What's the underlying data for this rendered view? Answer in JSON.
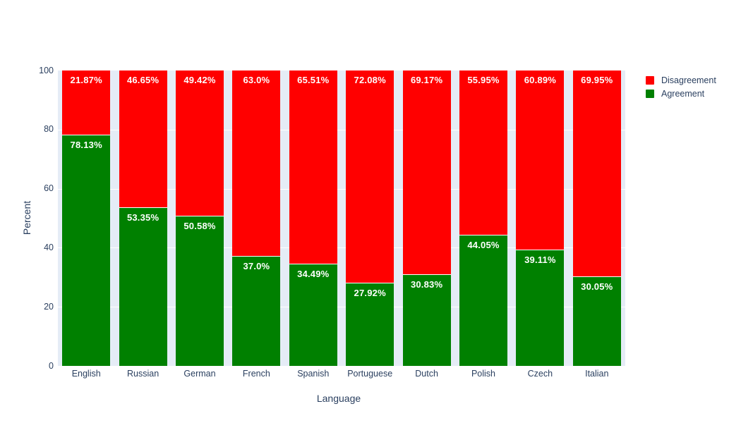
{
  "chart_data": {
    "type": "bar",
    "stacked": true,
    "orientation": "vertical",
    "title": "",
    "xlabel": "Language",
    "ylabel": "Percent",
    "ylim": [
      0,
      100
    ],
    "yticks": [
      0,
      20,
      40,
      60,
      80,
      100
    ],
    "grid": true,
    "plot_bgcolor": "#e5ecf6",
    "paper_bgcolor": "#ffffff",
    "text_color": "#2a3f5f",
    "bar_label_color": "#ffffff",
    "categories": [
      "English",
      "Russian",
      "German",
      "French",
      "Spanish",
      "Portuguese",
      "Dutch",
      "Polish",
      "Czech",
      "Italian"
    ],
    "series": [
      {
        "name": "Agreement",
        "color": "#008000",
        "values": [
          78.13,
          53.35,
          50.58,
          37.0,
          34.49,
          27.92,
          30.83,
          44.05,
          39.11,
          30.05
        ],
        "labels": [
          "78.13%",
          "53.35%",
          "50.58%",
          "37.0%",
          "34.49%",
          "27.92%",
          "30.83%",
          "44.05%",
          "39.11%",
          "30.05%"
        ]
      },
      {
        "name": "Disagreement",
        "color": "#ff0000",
        "values": [
          21.87,
          46.65,
          49.42,
          63.0,
          65.51,
          72.08,
          69.17,
          55.95,
          60.89,
          69.95
        ],
        "labels": [
          "21.87%",
          "46.65%",
          "49.42%",
          "63.0%",
          "65.51%",
          "72.08%",
          "69.17%",
          "55.95%",
          "60.89%",
          "69.95%"
        ]
      }
    ],
    "legend": {
      "position": "top-right",
      "entries": [
        "Disagreement",
        "Agreement"
      ]
    }
  }
}
